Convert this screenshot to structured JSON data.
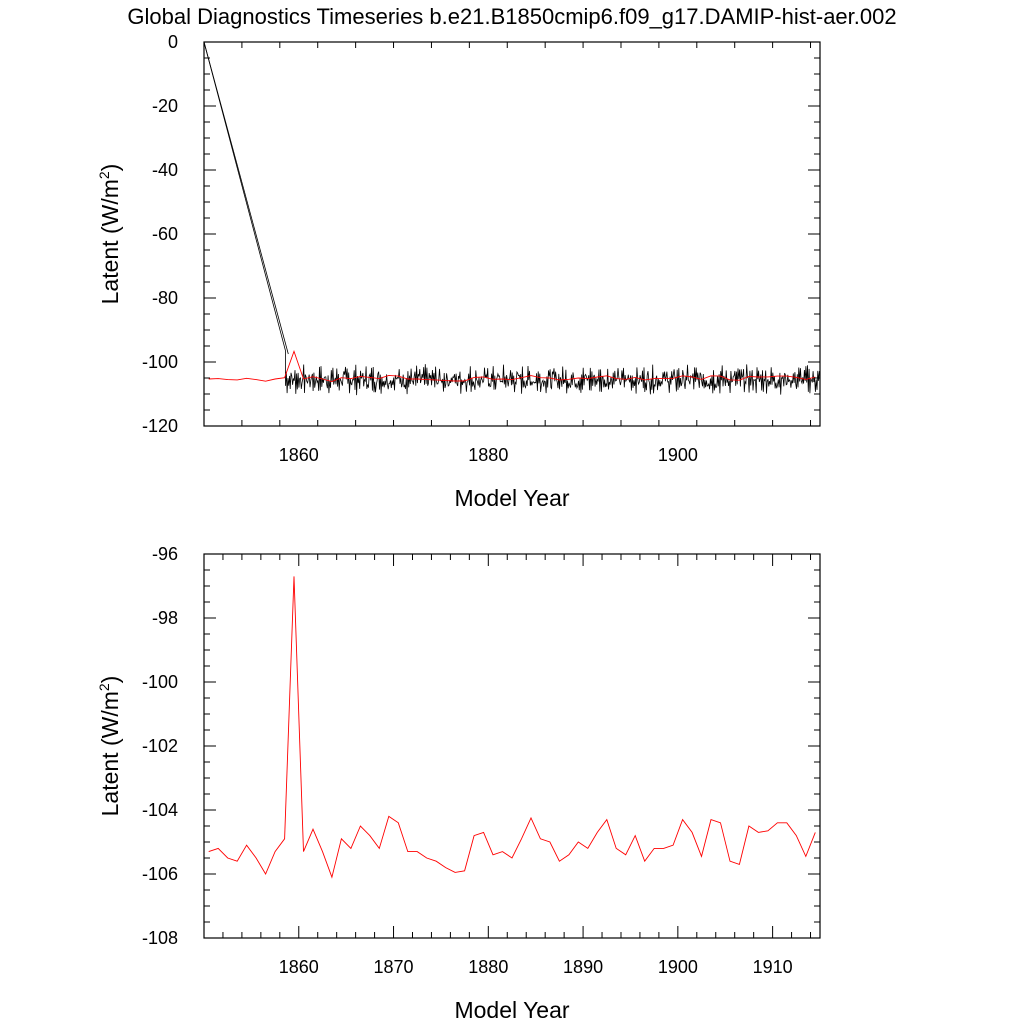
{
  "title": "Global Diagnostics Timeseries b.e21.B1850cmip6.f09_g17.DAMIP-hist-aer.002",
  "chart_data": [
    {
      "type": "line",
      "xlabel": "Model Year",
      "ylabel": "Latent (W/m",
      "ylabel_sup": "2",
      "ylabel_close": ")",
      "xlim": [
        1850,
        1915
      ],
      "ylim": [
        -120,
        0
      ],
      "xticks": [
        1860,
        1880,
        1900
      ],
      "yticks": [
        0,
        -20,
        -40,
        -60,
        -80,
        -100,
        -120
      ],
      "series": [
        {
          "style": "monthly",
          "color": "#000000",
          "points": [
            [
              1850.0,
              0
            ],
            [
              1858.6,
              -96.5
            ]
          ],
          "noise_from": 1850.0,
          "noise_to": 1915.0,
          "base": -105.5,
          "amplitude": 3.5
        },
        {
          "style": "monthly-secondary",
          "color": "#000000",
          "points": [
            [
              1850.0,
              0
            ],
            [
              1858.9,
              -97.5
            ]
          ]
        },
        {
          "style": "annual",
          "color": "#ff0000",
          "x": [
            1850.5,
            1851.5,
            1852.5,
            1853.5,
            1854.5,
            1855.5,
            1856.5,
            1857.5,
            1858.5,
            1859.5,
            1860.5,
            1861.5,
            1862.5,
            1863.5,
            1864.5,
            1865.5,
            1866.5,
            1867.5,
            1868.5,
            1869.5,
            1870.5,
            1871.5,
            1872.5,
            1873.5,
            1874.5,
            1875.5,
            1876.5,
            1877.5,
            1878.5,
            1879.5,
            1880.5,
            1881.5,
            1882.5,
            1883.5,
            1884.5,
            1885.5,
            1886.5,
            1887.5,
            1888.5,
            1889.5,
            1890.5,
            1891.5,
            1892.5,
            1893.5,
            1894.5,
            1895.5,
            1896.5,
            1897.5,
            1898.5,
            1899.5,
            1900.5,
            1901.5,
            1902.5,
            1903.5,
            1904.5,
            1905.5,
            1906.5,
            1907.5,
            1908.5,
            1909.5,
            1910.5,
            1911.5,
            1912.5,
            1913.5,
            1914.5
          ],
          "y": [
            -105.3,
            -105.2,
            -105.5,
            -105.6,
            -105.1,
            -105.5,
            -106.0,
            -105.3,
            -104.9,
            -96.7,
            -105.3,
            -104.6,
            -105.3,
            -106.1,
            -104.9,
            -105.2,
            -104.5,
            -104.8,
            -105.2,
            -104.2,
            -104.4,
            -105.3,
            -105.3,
            -105.5,
            -105.6,
            -105.8,
            -105.95,
            -105.9,
            -104.8,
            -104.7,
            -105.4,
            -105.3,
            -105.5,
            -104.9,
            -104.25,
            -104.9,
            -105.0,
            -105.6,
            -105.4,
            -105.0,
            -105.2,
            -104.7,
            -104.3,
            -105.2,
            -105.4,
            -104.8,
            -105.6,
            -105.2,
            -105.2,
            -105.1,
            -104.3,
            -104.7,
            -105.45,
            -104.3,
            -104.4,
            -105.6,
            -105.7,
            -104.5,
            -104.7,
            -104.65,
            -104.4,
            -104.4,
            -104.8,
            -105.45,
            -104.7
          ]
        }
      ]
    },
    {
      "type": "line",
      "xlabel": "Model Year",
      "ylabel": "Latent (W/m",
      "ylabel_sup": "2",
      "ylabel_close": ")",
      "xlim": [
        1850,
        1915
      ],
      "ylim": [
        -108,
        -96
      ],
      "xticks": [
        1860,
        1870,
        1880,
        1890,
        1900,
        1910
      ],
      "yticks": [
        -96,
        -98,
        -100,
        -102,
        -104,
        -106,
        -108
      ],
      "series": [
        {
          "style": "annual",
          "color": "#ff0000",
          "x": [
            1850.5,
            1851.5,
            1852.5,
            1853.5,
            1854.5,
            1855.5,
            1856.5,
            1857.5,
            1858.5,
            1859.5,
            1860.5,
            1861.5,
            1862.5,
            1863.5,
            1864.5,
            1865.5,
            1866.5,
            1867.5,
            1868.5,
            1869.5,
            1870.5,
            1871.5,
            1872.5,
            1873.5,
            1874.5,
            1875.5,
            1876.5,
            1877.5,
            1878.5,
            1879.5,
            1880.5,
            1881.5,
            1882.5,
            1883.5,
            1884.5,
            1885.5,
            1886.5,
            1887.5,
            1888.5,
            1889.5,
            1890.5,
            1891.5,
            1892.5,
            1893.5,
            1894.5,
            1895.5,
            1896.5,
            1897.5,
            1898.5,
            1899.5,
            1900.5,
            1901.5,
            1902.5,
            1903.5,
            1904.5,
            1905.5,
            1906.5,
            1907.5,
            1908.5,
            1909.5,
            1910.5,
            1911.5,
            1912.5,
            1913.5,
            1914.5
          ],
          "y": [
            -105.3,
            -105.2,
            -105.5,
            -105.6,
            -105.1,
            -105.5,
            -106.0,
            -105.3,
            -104.9,
            -96.7,
            -105.3,
            -104.6,
            -105.3,
            -106.1,
            -104.9,
            -105.2,
            -104.5,
            -104.8,
            -105.2,
            -104.2,
            -104.4,
            -105.3,
            -105.3,
            -105.5,
            -105.6,
            -105.8,
            -105.95,
            -105.9,
            -104.8,
            -104.7,
            -105.4,
            -105.3,
            -105.5,
            -104.9,
            -104.25,
            -104.9,
            -105.0,
            -105.6,
            -105.4,
            -105.0,
            -105.2,
            -104.7,
            -104.3,
            -105.2,
            -105.4,
            -104.8,
            -105.6,
            -105.2,
            -105.2,
            -105.1,
            -104.3,
            -104.7,
            -105.45,
            -104.3,
            -104.4,
            -105.6,
            -105.7,
            -104.5,
            -104.7,
            -104.65,
            -104.4,
            -104.4,
            -104.8,
            -105.45,
            -104.7
          ]
        }
      ]
    }
  ]
}
